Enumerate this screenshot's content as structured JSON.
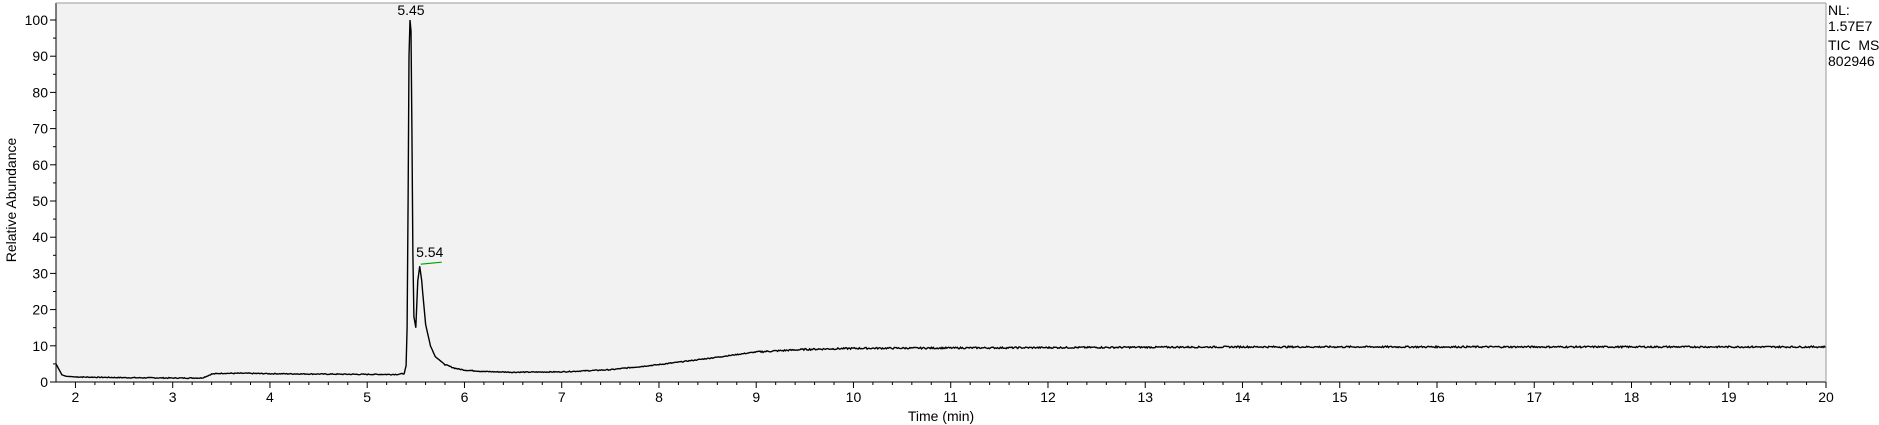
{
  "chart_data": {
    "type": "line",
    "xlabel": "Time (min)",
    "ylabel": "Relative Abundance",
    "xlim": [
      1.8,
      20
    ],
    "ylim": [
      0,
      100
    ],
    "x_ticks": [
      2,
      3,
      4,
      5,
      6,
      7,
      8,
      9,
      10,
      11,
      12,
      13,
      14,
      15,
      16,
      17,
      18,
      19,
      20
    ],
    "y_ticks": [
      0,
      10,
      20,
      30,
      40,
      50,
      60,
      70,
      80,
      90,
      100
    ],
    "grid": false,
    "peaks": [
      {
        "label": "5.45",
        "x": 5.45,
        "y": 100
      },
      {
        "label": "5.54",
        "x": 5.54,
        "y": 32
      }
    ],
    "info": [
      "NL:",
      "1.57E7",
      "TIC  MS",
      "802946"
    ],
    "colors": {
      "trace": "#000000",
      "plot_bg": "#f2f2f2",
      "peak_marker": "#00a000"
    },
    "series": [
      {
        "x": [
          1.8,
          1.83,
          1.86,
          1.9,
          2.0,
          2.5,
          3.0,
          3.3,
          3.35,
          3.4,
          3.5,
          3.75,
          4.0,
          4.5,
          5.0,
          5.3,
          5.38,
          5.4,
          5.41,
          5.42,
          5.43,
          5.44,
          5.45,
          5.46,
          5.47,
          5.48,
          5.5,
          5.52,
          5.54,
          5.56,
          5.58,
          5.6,
          5.65,
          5.7,
          5.8,
          5.9,
          6.0,
          6.2,
          6.5,
          7.0,
          7.5,
          8.0,
          8.5,
          9.0,
          9.5,
          10.0,
          11.0,
          12.0,
          13.0,
          14.0,
          15.0,
          16.0,
          17.0,
          18.0,
          19.0,
          20.0
        ],
        "y": [
          5.0,
          3.5,
          2.0,
          1.6,
          1.4,
          1.2,
          1.1,
          1.1,
          1.6,
          2.2,
          2.4,
          2.4,
          2.3,
          2.2,
          2.1,
          2.1,
          2.3,
          4.5,
          15.0,
          50.0,
          90.0,
          100.0,
          97.0,
          70.0,
          35.0,
          18.0,
          15.0,
          28.0,
          32.0,
          28.0,
          22.0,
          16.0,
          10.0,
          7.0,
          4.8,
          3.8,
          3.3,
          2.9,
          2.7,
          2.8,
          3.4,
          4.8,
          6.5,
          8.3,
          9.0,
          9.3,
          9.4,
          9.5,
          9.6,
          9.7,
          9.7,
          9.7,
          9.7,
          9.7,
          9.7,
          9.7
        ]
      }
    ]
  }
}
